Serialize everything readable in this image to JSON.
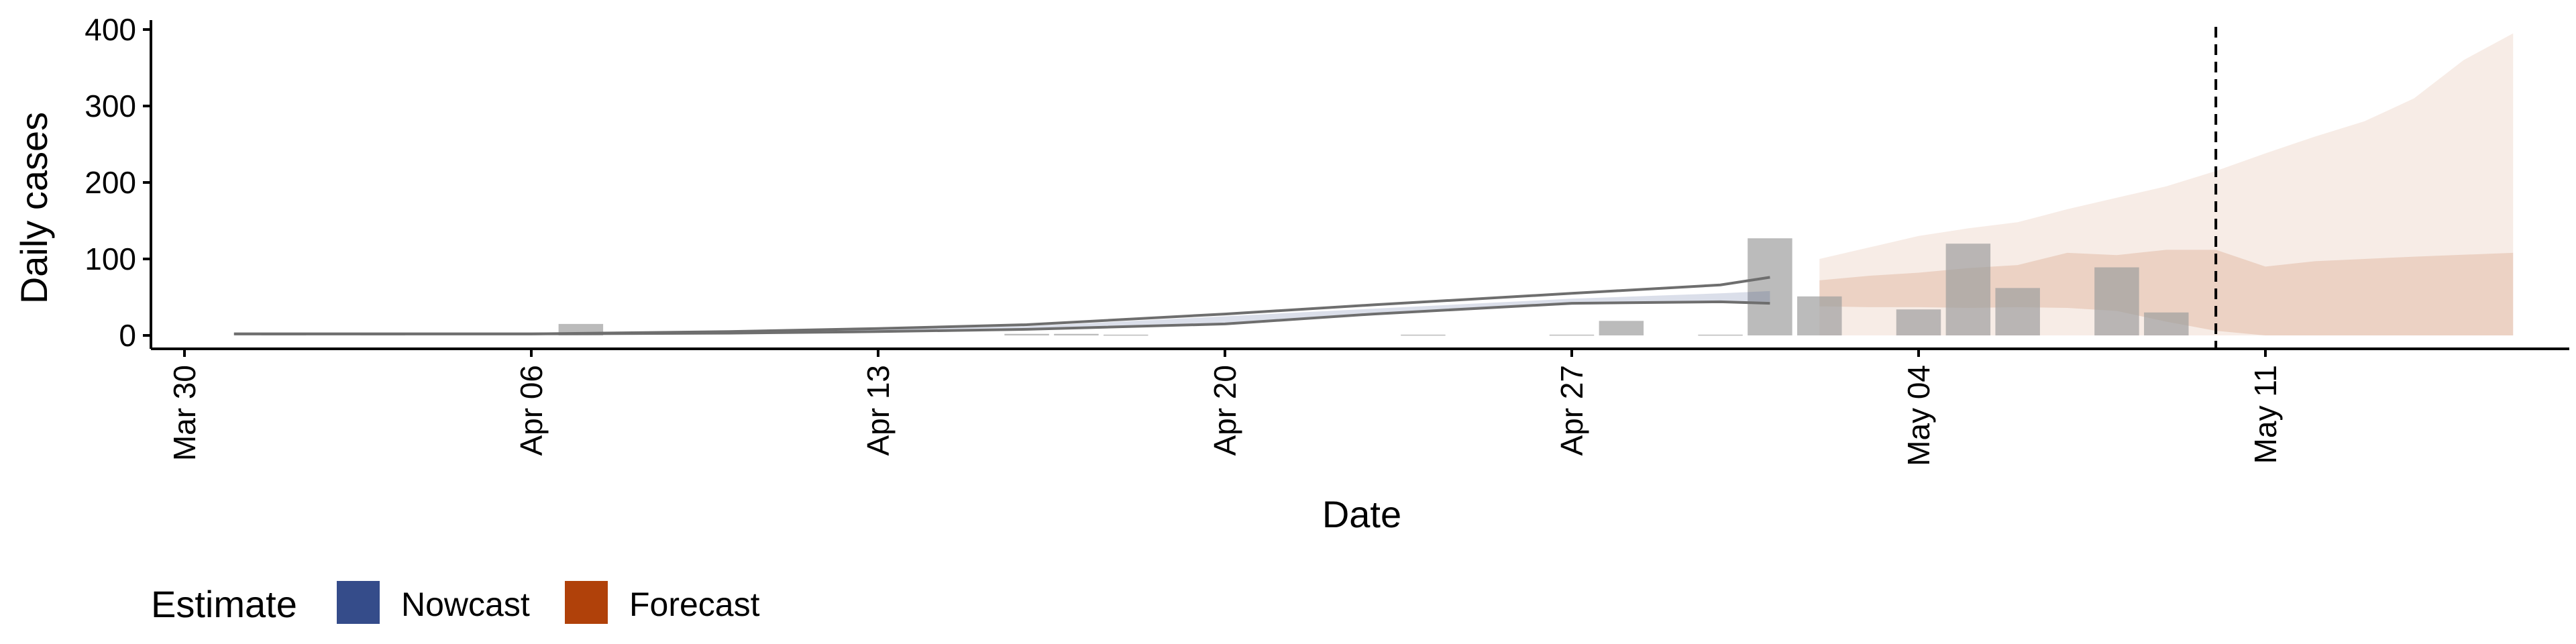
{
  "chart_data": {
    "type": "bar",
    "xlabel": "Date",
    "ylabel": "Daily cases",
    "ylim": [
      -15,
      415
    ],
    "y_ticks": [
      0,
      100,
      200,
      300,
      400
    ],
    "x_range": [
      "2020-03-30",
      "2020-05-19"
    ],
    "x_ticks": [
      {
        "date": "2020-03-30",
        "label": "Mar 30"
      },
      {
        "date": "2020-04-06",
        "label": "Apr 06"
      },
      {
        "date": "2020-04-13",
        "label": "Apr 13"
      },
      {
        "date": "2020-04-20",
        "label": "Apr 20"
      },
      {
        "date": "2020-04-27",
        "label": "Apr 27"
      },
      {
        "date": "2020-05-04",
        "label": "May 04"
      },
      {
        "date": "2020-05-11",
        "label": "May 11"
      }
    ],
    "vline_date": "2020-05-10",
    "grid": false,
    "legend": {
      "title": "Estimate",
      "placement": "bottom-left",
      "items": [
        {
          "label": "Nowcast",
          "color": "#354c8a"
        },
        {
          "label": "Forecast",
          "color": "#b0410a"
        }
      ]
    },
    "colors": {
      "bar": "#9e9e9e",
      "nowcast": "#354c8a",
      "forecast": "#b0410a",
      "line": "#6e6e6e"
    },
    "cases": [
      {
        "date": "2020-04-01",
        "value": 3
      },
      {
        "date": "2020-04-03",
        "value": 2
      },
      {
        "date": "2020-04-07",
        "value": 15
      },
      {
        "date": "2020-04-16",
        "value": 2
      },
      {
        "date": "2020-04-17",
        "value": 2
      },
      {
        "date": "2020-04-18",
        "value": 1
      },
      {
        "date": "2020-04-24",
        "value": 1
      },
      {
        "date": "2020-04-27",
        "value": 1
      },
      {
        "date": "2020-04-28",
        "value": 19
      },
      {
        "date": "2020-04-30",
        "value": 1
      },
      {
        "date": "2020-05-01",
        "value": 127
      },
      {
        "date": "2020-05-02",
        "value": 51
      },
      {
        "date": "2020-05-04",
        "value": 34
      },
      {
        "date": "2020-05-05",
        "value": 120
      },
      {
        "date": "2020-05-06",
        "value": 62
      },
      {
        "date": "2020-05-08",
        "value": 89
      },
      {
        "date": "2020-05-09",
        "value": 30
      }
    ],
    "nowcast_lines": {
      "upper": [
        {
          "date": "2020-03-31",
          "value": 2
        },
        {
          "date": "2020-04-02",
          "value": 2
        },
        {
          "date": "2020-04-06",
          "value": 2
        },
        {
          "date": "2020-04-10",
          "value": 5
        },
        {
          "date": "2020-04-13",
          "value": 9
        },
        {
          "date": "2020-04-16",
          "value": 14
        },
        {
          "date": "2020-04-20",
          "value": 28
        },
        {
          "date": "2020-04-23",
          "value": 40
        },
        {
          "date": "2020-04-27",
          "value": 55
        },
        {
          "date": "2020-04-30",
          "value": 66
        },
        {
          "date": "2020-05-01",
          "value": 76
        }
      ],
      "lower": [
        {
          "date": "2020-03-31",
          "value": 2
        },
        {
          "date": "2020-04-02",
          "value": 2
        },
        {
          "date": "2020-04-06",
          "value": 2
        },
        {
          "date": "2020-04-10",
          "value": 3
        },
        {
          "date": "2020-04-13",
          "value": 5
        },
        {
          "date": "2020-04-16",
          "value": 8
        },
        {
          "date": "2020-04-20",
          "value": 15
        },
        {
          "date": "2020-04-23",
          "value": 28
        },
        {
          "date": "2020-04-27",
          "value": 42
        },
        {
          "date": "2020-04-30",
          "value": 44
        },
        {
          "date": "2020-05-01",
          "value": 42
        }
      ]
    },
    "nowcast_band": [
      {
        "date": "2020-04-10",
        "low": 3,
        "high": 4
      },
      {
        "date": "2020-04-16",
        "low": 8,
        "high": 12
      },
      {
        "date": "2020-04-20",
        "low": 16,
        "high": 25
      },
      {
        "date": "2020-04-23",
        "low": 28,
        "high": 35
      },
      {
        "date": "2020-04-27",
        "low": 40,
        "high": 48
      },
      {
        "date": "2020-04-30",
        "low": 44,
        "high": 55
      },
      {
        "date": "2020-05-01",
        "low": 44,
        "high": 58
      }
    ],
    "forecast_outer": [
      {
        "date": "2020-05-02",
        "low": 0,
        "high": 100
      },
      {
        "date": "2020-05-03",
        "low": 0,
        "high": 115
      },
      {
        "date": "2020-05-04",
        "low": 0,
        "high": 130
      },
      {
        "date": "2020-05-05",
        "low": 0,
        "high": 140
      },
      {
        "date": "2020-05-06",
        "low": 0,
        "high": 148
      },
      {
        "date": "2020-05-07",
        "low": 0,
        "high": 165
      },
      {
        "date": "2020-05-08",
        "low": 0,
        "high": 180
      },
      {
        "date": "2020-05-09",
        "low": 0,
        "high": 195
      },
      {
        "date": "2020-05-10",
        "low": 0,
        "high": 215
      },
      {
        "date": "2020-05-11",
        "low": 0,
        "high": 238
      },
      {
        "date": "2020-05-12",
        "low": 0,
        "high": 260
      },
      {
        "date": "2020-05-13",
        "low": 0,
        "high": 280
      },
      {
        "date": "2020-05-14",
        "low": 0,
        "high": 310
      },
      {
        "date": "2020-05-15",
        "low": 0,
        "high": 360
      },
      {
        "date": "2020-05-16",
        "low": 0,
        "high": 395
      }
    ],
    "forecast_inner": [
      {
        "date": "2020-05-02",
        "low": 38,
        "high": 72
      },
      {
        "date": "2020-05-03",
        "low": 37,
        "high": 78
      },
      {
        "date": "2020-05-04",
        "low": 37,
        "high": 82
      },
      {
        "date": "2020-05-05",
        "low": 36,
        "high": 88
      },
      {
        "date": "2020-05-06",
        "low": 37,
        "high": 92
      },
      {
        "date": "2020-05-07",
        "low": 36,
        "high": 108
      },
      {
        "date": "2020-05-08",
        "low": 32,
        "high": 105
      },
      {
        "date": "2020-05-09",
        "low": 18,
        "high": 112
      },
      {
        "date": "2020-05-10",
        "low": 6,
        "high": 112
      },
      {
        "date": "2020-05-11",
        "low": 0,
        "high": 90
      },
      {
        "date": "2020-05-12",
        "low": 0,
        "high": 97
      },
      {
        "date": "2020-05-13",
        "low": 0,
        "high": 100
      },
      {
        "date": "2020-05-14",
        "low": 0,
        "high": 103
      },
      {
        "date": "2020-05-16",
        "low": 0,
        "high": 108
      }
    ]
  }
}
